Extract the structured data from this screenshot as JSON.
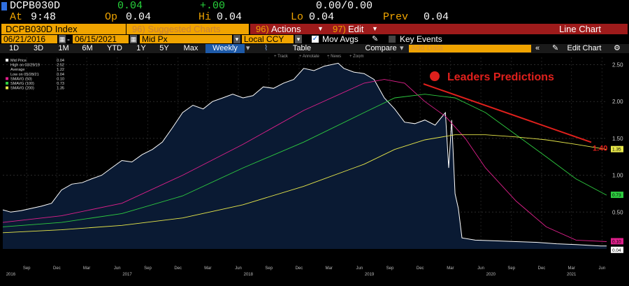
{
  "quote": {
    "ticker": "DCPB030D",
    "last": "0.04",
    "change": "+.00",
    "bid_ask": "0.00/0.00",
    "at_label": "At",
    "time": "9:48",
    "op_label": "Op",
    "open": "0.04",
    "hi_label": "Hi",
    "high": "0.04",
    "lo_label": "Lo",
    "low": "0.04",
    "prev_label": "Prev",
    "prev": "0.04"
  },
  "toolbar1": {
    "security": "DCPB030D Index",
    "suggested": "96) Suggested Charts",
    "actions_num": "96)",
    "actions": "Actions",
    "edit_num": "97)",
    "edit": "Edit",
    "chart_type": "Line Chart"
  },
  "toolbar2": {
    "start_date": "06/21/2016",
    "end_date": "06/15/2021",
    "field": "Mid Px",
    "currency": "Local CCY",
    "mov_avgs": "Mov Avgs",
    "key_events": "Key Events"
  },
  "toolbar3": {
    "ranges": [
      "1D",
      "3D",
      "1M",
      "6M",
      "YTD",
      "1Y",
      "5Y",
      "Max"
    ],
    "frequency": "Weekly",
    "table": "Table",
    "compare": "Compare",
    "add_data": "Add Data",
    "edit_chart": "Edit Chart",
    "tools": [
      "Track",
      "Annotate",
      "News",
      "Zoom"
    ]
  },
  "legend": [
    {
      "label": "Mid Price",
      "value": "0.04",
      "color": "#ffffff"
    },
    {
      "label": "High on 03/29/19",
      "value": "2.52",
      "color": null
    },
    {
      "label": "Average",
      "value": "1.22",
      "color": null
    },
    {
      "label": "Low on 05/28/21",
      "value": "0.04",
      "color": null
    },
    {
      "label": "SMAVG (50)",
      "value": "0.10",
      "color": "#e0208c"
    },
    {
      "label": "SMAVG (100)",
      "value": "0.73",
      "color": "#2ecc40"
    },
    {
      "label": "SMAVG (200)",
      "value": "1.35",
      "color": "#e8e84a"
    }
  ],
  "annotation": {
    "text": "Leaders Predictions",
    "target_label": "1.40",
    "color": "#e0201c"
  },
  "colors": {
    "price": "#ffffff",
    "fill": "#0a1a33",
    "sma50": "#e0208c",
    "sma100": "#2ecc40",
    "sma200": "#e8e84a",
    "bloomberg_orange": "#f0a400"
  },
  "chart_data": {
    "type": "line",
    "x_start": "2016-06-21",
    "x_end": "2021-06-15",
    "ylim": [
      0,
      2.6
    ],
    "yticks": [
      "0.50",
      "1.00",
      "1.50",
      "2.00",
      "2.50"
    ],
    "ytick_values": [
      0.5,
      1.0,
      1.5,
      2.0,
      2.5
    ],
    "month_ticks": [
      {
        "label": "Sep",
        "date": "2016-09-01"
      },
      {
        "label": "Dec",
        "date": "2016-12-01"
      },
      {
        "label": "Mar",
        "date": "2017-03-01"
      },
      {
        "label": "Jun",
        "date": "2017-06-01"
      },
      {
        "label": "Sep",
        "date": "2017-09-01"
      },
      {
        "label": "Dec",
        "date": "2017-12-01"
      },
      {
        "label": "Mar",
        "date": "2018-03-01"
      },
      {
        "label": "Jun",
        "date": "2018-06-01"
      },
      {
        "label": "Sep",
        "date": "2018-09-01"
      },
      {
        "label": "Dec",
        "date": "2018-12-01"
      },
      {
        "label": "Mar",
        "date": "2019-03-01"
      },
      {
        "label": "Jun",
        "date": "2019-06-01"
      },
      {
        "label": "Sep",
        "date": "2019-09-01"
      },
      {
        "label": "Dec",
        "date": "2019-12-01"
      },
      {
        "label": "Mar",
        "date": "2020-03-01"
      },
      {
        "label": "Jun",
        "date": "2020-06-01"
      },
      {
        "label": "Sep",
        "date": "2020-09-01"
      },
      {
        "label": "Dec",
        "date": "2020-12-01"
      },
      {
        "label": "Mar",
        "date": "2021-03-01"
      },
      {
        "label": "Jun",
        "date": "2021-06-01"
      }
    ],
    "year_ticks": [
      {
        "label": "2016",
        "date": "2016-07-15"
      },
      {
        "label": "2017",
        "date": "2017-07-01"
      },
      {
        "label": "2018",
        "date": "2018-07-01"
      },
      {
        "label": "2019",
        "date": "2019-07-01"
      },
      {
        "label": "2020",
        "date": "2020-07-01"
      },
      {
        "label": "2021",
        "date": "2021-03-01"
      }
    ],
    "series": [
      {
        "name": "Mid Price",
        "values": [
          [
            "2016-06-21",
            0.53
          ],
          [
            "2016-07-15",
            0.5
          ],
          [
            "2016-08-15",
            0.52
          ],
          [
            "2016-09-15",
            0.55
          ],
          [
            "2016-10-15",
            0.58
          ],
          [
            "2016-11-15",
            0.62
          ],
          [
            "2016-12-15",
            0.8
          ],
          [
            "2017-01-15",
            0.88
          ],
          [
            "2017-02-15",
            0.9
          ],
          [
            "2017-03-15",
            0.95
          ],
          [
            "2017-04-15",
            1.0
          ],
          [
            "2017-05-15",
            1.1
          ],
          [
            "2017-06-15",
            1.2
          ],
          [
            "2017-07-15",
            1.18
          ],
          [
            "2017-08-15",
            1.28
          ],
          [
            "2017-09-15",
            1.35
          ],
          [
            "2017-10-15",
            1.45
          ],
          [
            "2017-11-15",
            1.65
          ],
          [
            "2017-12-15",
            1.85
          ],
          [
            "2018-01-15",
            1.95
          ],
          [
            "2018-02-15",
            1.9
          ],
          [
            "2018-03-15",
            2.0
          ],
          [
            "2018-04-15",
            2.05
          ],
          [
            "2018-05-15",
            2.1
          ],
          [
            "2018-06-15",
            2.05
          ],
          [
            "2018-07-15",
            2.08
          ],
          [
            "2018-08-15",
            2.2
          ],
          [
            "2018-09-15",
            2.18
          ],
          [
            "2018-10-15",
            2.25
          ],
          [
            "2018-11-15",
            2.3
          ],
          [
            "2018-12-15",
            2.45
          ],
          [
            "2019-01-15",
            2.42
          ],
          [
            "2019-02-15",
            2.48
          ],
          [
            "2019-03-29",
            2.52
          ],
          [
            "2019-04-15",
            2.45
          ],
          [
            "2019-05-15",
            2.4
          ],
          [
            "2019-06-15",
            2.38
          ],
          [
            "2019-07-15",
            2.3
          ],
          [
            "2019-08-15",
            2.05
          ],
          [
            "2019-09-15",
            1.9
          ],
          [
            "2019-10-15",
            1.72
          ],
          [
            "2019-11-15",
            1.7
          ],
          [
            "2019-12-15",
            1.75
          ],
          [
            "2020-01-15",
            1.68
          ],
          [
            "2020-02-15",
            1.85
          ],
          [
            "2020-02-25",
            1.1
          ],
          [
            "2020-03-05",
            1.75
          ],
          [
            "2020-03-15",
            0.75
          ],
          [
            "2020-03-25",
            0.55
          ],
          [
            "2020-04-05",
            0.15
          ],
          [
            "2020-05-15",
            0.12
          ],
          [
            "2020-07-15",
            0.11
          ],
          [
            "2020-09-15",
            0.1
          ],
          [
            "2020-11-15",
            0.09
          ],
          [
            "2021-01-15",
            0.07
          ],
          [
            "2021-03-15",
            0.06
          ],
          [
            "2021-05-28",
            0.04
          ],
          [
            "2021-06-15",
            0.04
          ]
        ]
      },
      {
        "name": "SMAVG (50)",
        "values": [
          [
            "2016-06-21",
            0.36
          ],
          [
            "2016-12-15",
            0.45
          ],
          [
            "2017-06-15",
            0.62
          ],
          [
            "2017-12-15",
            1.0
          ],
          [
            "2018-06-15",
            1.42
          ],
          [
            "2018-12-15",
            1.88
          ],
          [
            "2019-06-15",
            2.25
          ],
          [
            "2019-08-15",
            2.3
          ],
          [
            "2019-10-15",
            2.25
          ],
          [
            "2019-12-15",
            2.0
          ],
          [
            "2020-02-15",
            1.8
          ],
          [
            "2020-04-15",
            1.5
          ],
          [
            "2020-06-15",
            1.1
          ],
          [
            "2020-09-15",
            0.65
          ],
          [
            "2020-12-15",
            0.3
          ],
          [
            "2021-03-15",
            0.12
          ],
          [
            "2021-06-15",
            0.1
          ]
        ]
      },
      {
        "name": "SMAVG (100)",
        "values": [
          [
            "2016-06-21",
            0.3
          ],
          [
            "2016-12-15",
            0.36
          ],
          [
            "2017-06-15",
            0.48
          ],
          [
            "2017-12-15",
            0.72
          ],
          [
            "2018-06-15",
            1.1
          ],
          [
            "2018-12-15",
            1.45
          ],
          [
            "2019-06-15",
            1.85
          ],
          [
            "2019-09-15",
            2.05
          ],
          [
            "2019-12-15",
            2.1
          ],
          [
            "2020-03-15",
            2.05
          ],
          [
            "2020-06-15",
            1.85
          ],
          [
            "2020-09-15",
            1.55
          ],
          [
            "2020-12-15",
            1.25
          ],
          [
            "2021-03-15",
            0.95
          ],
          [
            "2021-06-15",
            0.73
          ]
        ]
      },
      {
        "name": "SMAVG (200)",
        "values": [
          [
            "2016-06-21",
            0.22
          ],
          [
            "2016-12-15",
            0.26
          ],
          [
            "2017-06-15",
            0.32
          ],
          [
            "2017-12-15",
            0.42
          ],
          [
            "2018-06-15",
            0.6
          ],
          [
            "2018-12-15",
            0.85
          ],
          [
            "2019-06-15",
            1.15
          ],
          [
            "2019-09-15",
            1.35
          ],
          [
            "2019-12-15",
            1.48
          ],
          [
            "2020-03-15",
            1.55
          ],
          [
            "2020-06-15",
            1.55
          ],
          [
            "2020-09-15",
            1.52
          ],
          [
            "2020-12-15",
            1.48
          ],
          [
            "2021-03-15",
            1.42
          ],
          [
            "2021-06-15",
            1.35
          ]
        ]
      }
    ],
    "last_values": [
      {
        "series": "SMAVG (200)",
        "label": "1.35",
        "bg": "#e8e84a",
        "fg": "#000000"
      },
      {
        "series": "SMAVG (100)",
        "label": "0.73",
        "bg": "#2ecc40",
        "fg": "#000000"
      },
      {
        "series": "SMAVG (50)",
        "label": "0.10",
        "bg": "#e0208c",
        "fg": "#000000"
      },
      {
        "series": "Mid Price",
        "label": "0.04",
        "bg": "#ffffff",
        "fg": "#000000"
      }
    ],
    "prediction_target": {
      "date": "2021-06-15",
      "value": 1.4
    }
  }
}
